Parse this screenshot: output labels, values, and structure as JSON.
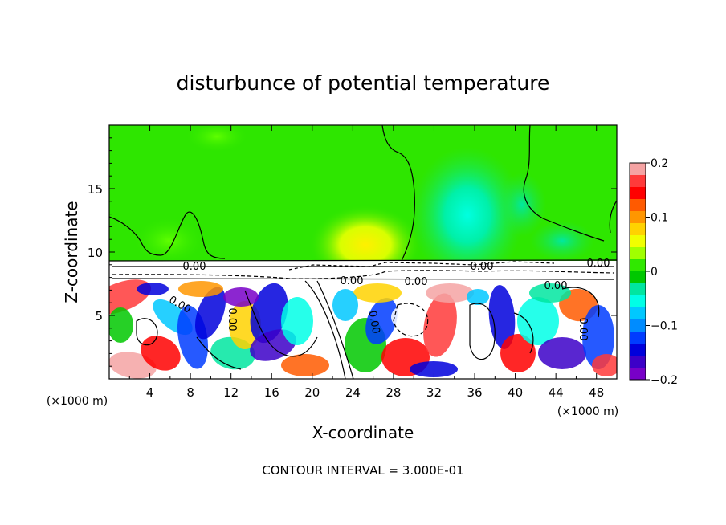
{
  "chart_data": {
    "type": "heatmap",
    "title": "disturbunce of potential temperature",
    "xlabel": "X-coordinate",
    "ylabel": "Z-coordinate",
    "x_unit": "(×1000 m)",
    "z_unit": "(×1000 m)",
    "xlim": [
      0,
      50
    ],
    "ylim": [
      0,
      20
    ],
    "x_ticks": [
      4,
      8,
      12,
      16,
      20,
      24,
      28,
      32,
      36,
      40,
      44,
      48
    ],
    "y_ticks": [
      5,
      10,
      15
    ],
    "colorbar": {
      "ticks": [
        "0.2",
        "0.1",
        "0",
        "−0.1",
        "−0.2"
      ],
      "tick_values": [
        0.2,
        0.1,
        0,
        -0.1,
        -0.2
      ],
      "range": [
        -0.2,
        0.2
      ],
      "colors": [
        "#f5a3a3",
        "#ff3a3a",
        "#ff0000",
        "#ff5a00",
        "#ff9600",
        "#ffd200",
        "#f0ff00",
        "#a0ff00",
        "#30e800",
        "#00c800",
        "#00e6a0",
        "#00ffe6",
        "#00c8ff",
        "#008cff",
        "#003cff",
        "#0000dc",
        "#3c00c8",
        "#7800c8"
      ]
    },
    "contour_labels": [
      "0.00",
      "0.00",
      "0.00",
      "0.00",
      "0.00",
      "0.00",
      "0.00",
      "0.00",
      "0.00",
      "0.00"
    ],
    "contour_interval_text": "CONTOUR INTERVAL = 3.000E-01",
    "grid": false,
    "colors": {
      "upper_layer": "#00e600",
      "warm_plume": "#ffe100",
      "cool_plume": "#00ffc8",
      "inversion_band": "#ffffff"
    }
  }
}
